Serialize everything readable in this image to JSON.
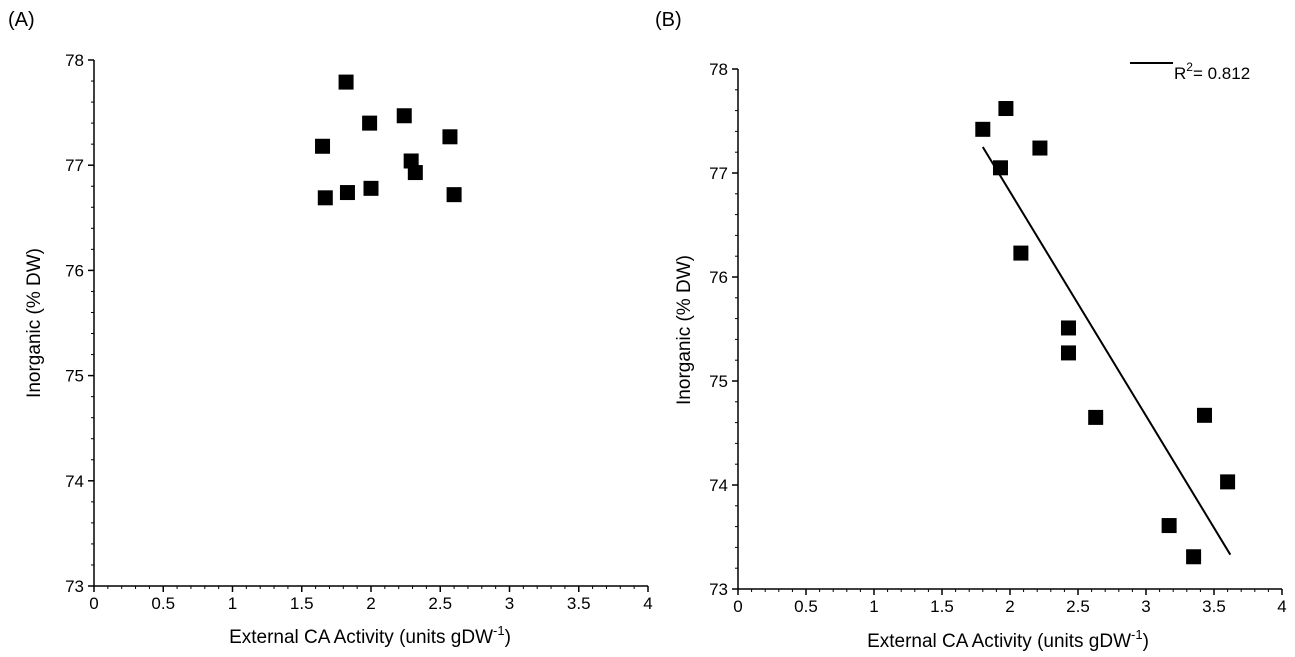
{
  "chart_data": [
    {
      "panel": "(A)",
      "type": "scatter",
      "xlabel": "External CA Activity (units gDW",
      "xlabel_sup": "-1",
      "xlabel_end": ")",
      "ylabel": "Inorganic (% DW)",
      "xlim": [
        0,
        4
      ],
      "ylim": [
        73,
        78
      ],
      "x_ticks": [
        "0",
        "0.5",
        "1",
        "1.5",
        "2",
        "2.5",
        "3",
        "3.5",
        "4"
      ],
      "y_ticks": [
        "73",
        "74",
        "75",
        "76",
        "77",
        "78"
      ],
      "points": [
        {
          "x": 1.65,
          "y": 77.18
        },
        {
          "x": 1.67,
          "y": 76.69
        },
        {
          "x": 1.82,
          "y": 77.79
        },
        {
          "x": 1.83,
          "y": 76.74
        },
        {
          "x": 1.99,
          "y": 77.4
        },
        {
          "x": 2.0,
          "y": 76.78
        },
        {
          "x": 2.24,
          "y": 77.47
        },
        {
          "x": 2.29,
          "y": 77.04
        },
        {
          "x": 2.32,
          "y": 76.93
        },
        {
          "x": 2.57,
          "y": 77.27
        },
        {
          "x": 2.6,
          "y": 76.72
        }
      ]
    },
    {
      "panel": "(B)",
      "type": "scatter",
      "xlabel": "External CA Activity (units gDW",
      "xlabel_sup": "-1",
      "xlabel_end": ")",
      "ylabel": "Inorganic (% DW)",
      "xlim": [
        0,
        4
      ],
      "ylim": [
        73,
        78
      ],
      "x_ticks": [
        "0",
        "0.5",
        "1",
        "1.5",
        "2",
        "2.5",
        "3",
        "3.5",
        "4"
      ],
      "y_ticks": [
        "73",
        "74",
        "75",
        "76",
        "77",
        "78"
      ],
      "legend": {
        "label_prefix": "R",
        "label_sup": "2",
        "label_rest": "= 0.812",
        "position": "top-right"
      },
      "fit_line": {
        "x": [
          1.8,
          3.62
        ],
        "y": [
          77.25,
          73.33
        ]
      },
      "points": [
        {
          "x": 1.8,
          "y": 77.42
        },
        {
          "x": 1.93,
          "y": 77.05
        },
        {
          "x": 1.97,
          "y": 77.62
        },
        {
          "x": 2.08,
          "y": 76.23
        },
        {
          "x": 2.22,
          "y": 77.24
        },
        {
          "x": 2.43,
          "y": 75.51
        },
        {
          "x": 2.43,
          "y": 75.27
        },
        {
          "x": 2.63,
          "y": 74.65
        },
        {
          "x": 3.17,
          "y": 73.61
        },
        {
          "x": 3.35,
          "y": 73.31
        },
        {
          "x": 3.43,
          "y": 74.67
        },
        {
          "x": 3.6,
          "y": 74.03
        }
      ]
    }
  ]
}
